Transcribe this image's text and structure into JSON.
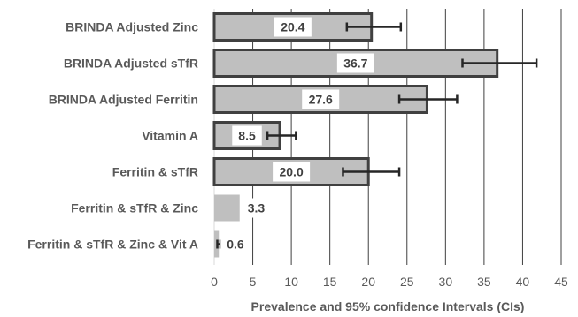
{
  "chart_data": {
    "type": "bar",
    "orientation": "horizontal",
    "categories": [
      "BRINDA Adjusted Zinc",
      "BRINDA Adjusted sTfR",
      "BRINDA Adjusted Ferritin",
      "Vitamin A",
      "Ferritin & sTfR",
      "Ferritin & sTfR & Zinc",
      "Ferritin & sTfR & Zinc & Vit A"
    ],
    "values": [
      20.4,
      36.7,
      27.6,
      8.5,
      20.0,
      3.3,
      0.6
    ],
    "value_labels": [
      "20.4",
      "36.7",
      "27.6",
      "8.5",
      "20.0",
      "3.3",
      "0.6"
    ],
    "ci_low": [
      17.2,
      32.2,
      24.0,
      6.9,
      16.7,
      4.2,
      0.4
    ],
    "ci_high": [
      24.2,
      41.8,
      31.5,
      10.6,
      24.0,
      4.6,
      0.8
    ],
    "bordered": [
      true,
      true,
      true,
      true,
      true,
      false,
      false
    ],
    "xlabel": "Prevalence and 95% confidence Intervals (CIs)",
    "xlim": [
      0,
      45
    ],
    "xticks": [
      "0",
      "5",
      "10",
      "15",
      "20",
      "25",
      "30",
      "35",
      "40",
      "45"
    ],
    "grid": true,
    "colors": {
      "bar_fill": "#bfbfbf",
      "bar_border": "#404040",
      "error_bar": "#262626",
      "grid": "#404040",
      "label_box": "#ffffff"
    }
  }
}
